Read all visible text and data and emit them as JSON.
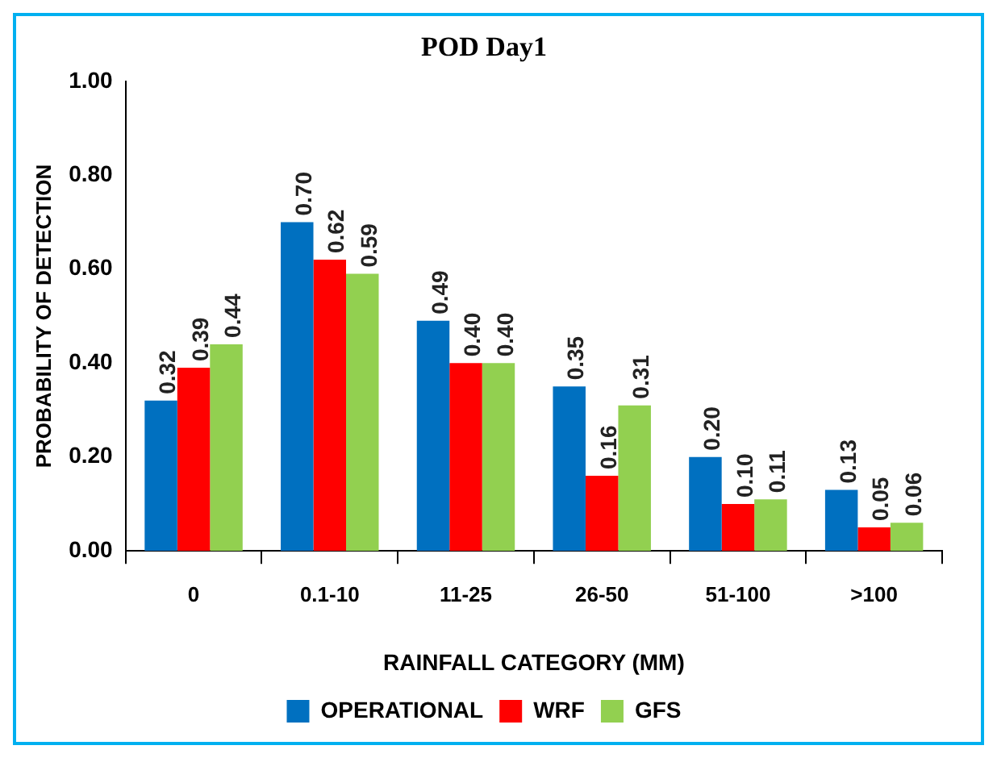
{
  "chart_data": {
    "type": "bar",
    "title": "POD Day1",
    "xlabel": "RAINFALL CATEGORY (MM)",
    "ylabel": "PROBABILITY OF DETECTION",
    "categories": [
      "0",
      "0.1-10",
      "11-25",
      "26-50",
      "51-100",
      ">100"
    ],
    "series": [
      {
        "name": "OPERATIONAL",
        "color": "#0070c0",
        "values": [
          0.32,
          0.7,
          0.49,
          0.35,
          0.2,
          0.13
        ],
        "value_labels": [
          "0.32",
          "0.70",
          "0.49",
          "0.35",
          "0.20",
          "0.13"
        ]
      },
      {
        "name": "WRF",
        "color": "#ff0000",
        "values": [
          0.39,
          0.62,
          0.4,
          0.16,
          0.1,
          0.05
        ],
        "value_labels": [
          "0.39",
          "0.62",
          "0.40",
          "0.16",
          "0.10",
          "0.05"
        ]
      },
      {
        "name": "GFS",
        "color": "#92d050",
        "values": [
          0.44,
          0.59,
          0.4,
          0.31,
          0.11,
          0.06
        ],
        "value_labels": [
          "0.44",
          "0.59",
          "0.40",
          "0.31",
          "0.11",
          "0.06"
        ]
      }
    ],
    "ylim": [
      0,
      1
    ],
    "yticks": [
      {
        "value": 0,
        "label": "0.00"
      },
      {
        "value": 0.2,
        "label": "0.20"
      },
      {
        "value": 0.4,
        "label": "0.40"
      },
      {
        "value": 0.6,
        "label": "0.60"
      },
      {
        "value": 0.8,
        "label": "0.80"
      },
      {
        "value": 1,
        "label": "1.00"
      }
    ],
    "grid": false,
    "legend": "bottom"
  }
}
